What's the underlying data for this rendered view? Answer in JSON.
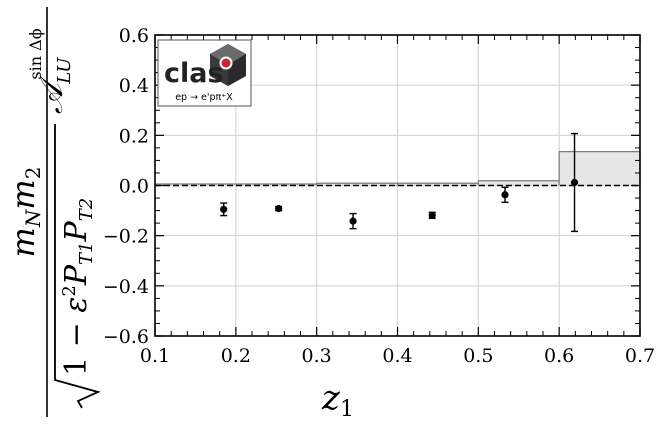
{
  "chart_data": {
    "type": "scatter",
    "xlabel": "z",
    "xlabel_sub": "1",
    "ylabel_text": {
      "numerator": "m_N m_2",
      "denominator": "√(1 − ε² P_T1 P_T2)",
      "asymmetry": "A_LU^(sin Δφ)"
    },
    "xlim": [
      0.1,
      0.7
    ],
    "ylim": [
      -0.6,
      0.6
    ],
    "x_ticks": [
      "0.1",
      "0.2",
      "0.3",
      "0.4",
      "0.5",
      "0.6",
      "0.7"
    ],
    "y_ticks": [
      "0.6",
      "0.4",
      "0.2",
      "0.0",
      "−0.2",
      "−0.4",
      "−0.6"
    ],
    "grid": true,
    "reference_line": 0.0,
    "series": [
      {
        "points": [
          {
            "x": 0.185,
            "y": -0.095,
            "err": 0.025
          },
          {
            "x": 0.253,
            "y": -0.092,
            "err": 0.008
          },
          {
            "x": 0.345,
            "y": -0.142,
            "err": 0.03
          },
          {
            "x": 0.443,
            "y": -0.119,
            "err": 0.012
          },
          {
            "x": 0.533,
            "y": -0.037,
            "err": 0.03
          },
          {
            "x": 0.619,
            "y": 0.012,
            "err": 0.195
          }
        ]
      }
    ],
    "systematic_bands": [
      {
        "x0": 0.1,
        "x1": 0.3,
        "height": 0.006
      },
      {
        "x0": 0.3,
        "x1": 0.4,
        "height": 0.009
      },
      {
        "x0": 0.4,
        "x1": 0.5,
        "height": 0.009
      },
      {
        "x0": 0.5,
        "x1": 0.6,
        "height": 0.019
      },
      {
        "x0": 0.6,
        "x1": 0.7,
        "height": 0.135
      }
    ],
    "colors": {
      "points": "#000000",
      "band_fill": "#e6e6e6",
      "band_edge": "#7a7a7a",
      "grid": "#d0d0d0",
      "logo_accent": "#d0202a",
      "logo_dark": "#3a3a3a"
    }
  },
  "logo": {
    "word": "clas",
    "reaction": "ep → e'pπ⁺X"
  }
}
